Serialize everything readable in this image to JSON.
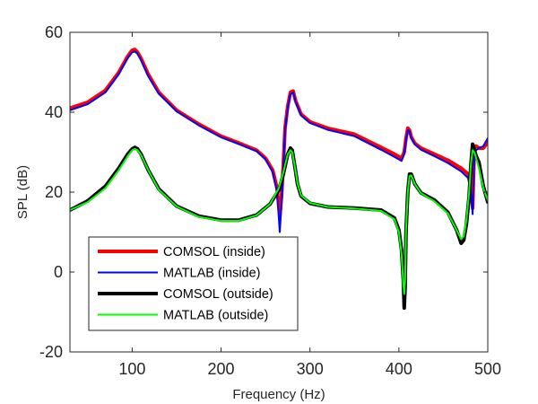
{
  "chart_data": {
    "type": "line",
    "xlabel": "Frequency (Hz)",
    "ylabel": "SPL (dB)",
    "xlim": [
      30,
      500
    ],
    "ylim": [
      -20,
      60
    ],
    "xticks": [
      100,
      200,
      300,
      400,
      500
    ],
    "yticks": [
      -20,
      0,
      20,
      40,
      60
    ],
    "grid": false,
    "legend_position": "bottom-left",
    "series": [
      {
        "name": "COMSOL (inside)",
        "color": "#ff0000",
        "line_width": "thick",
        "x": [
          30,
          50,
          70,
          85,
          95,
          100,
          103,
          106,
          110,
          118,
          130,
          150,
          175,
          200,
          220,
          240,
          250,
          258,
          263,
          266,
          268,
          270,
          272,
          275,
          278,
          281,
          284,
          290,
          300,
          320,
          350,
          380,
          395,
          403,
          406,
          408,
          410,
          412,
          414,
          418,
          425,
          440,
          455,
          470,
          478,
          481,
          483,
          485,
          487,
          490,
          495,
          500
        ],
        "values": [
          41,
          42.5,
          45.5,
          50,
          54,
          55.5,
          55.7,
          55,
          53.5,
          49.5,
          45,
          40.5,
          37,
          34,
          32.3,
          30.5,
          28.5,
          25.5,
          21,
          14,
          19,
          27,
          36,
          41.5,
          45,
          45.3,
          42.8,
          39.5,
          37.6,
          36,
          34.5,
          31.2,
          29.5,
          28.5,
          30,
          33.5,
          36,
          35.5,
          33.8,
          32.2,
          31,
          29.5,
          28,
          26,
          24.5,
          21,
          16,
          31.5,
          31.5,
          31,
          31,
          32.5
        ]
      },
      {
        "name": "MATLAB (inside)",
        "color": "#0000ff",
        "line_width": "thin",
        "x": [
          30,
          50,
          70,
          85,
          95,
          100,
          103,
          106,
          110,
          118,
          130,
          150,
          175,
          200,
          220,
          240,
          250,
          258,
          263,
          266,
          268,
          270,
          272,
          275,
          278,
          281,
          284,
          290,
          300,
          320,
          350,
          380,
          395,
          403,
          406,
          408,
          410,
          412,
          414,
          418,
          425,
          440,
          455,
          470,
          478,
          481,
          483,
          485,
          487,
          490,
          495,
          500
        ],
        "values": [
          40.5,
          42,
          45,
          49.5,
          53.5,
          55,
          55.2,
          54.6,
          53,
          49,
          44.6,
          40.2,
          36.7,
          33.7,
          32,
          30.2,
          28.2,
          25,
          20,
          10,
          17,
          26,
          35.5,
          41,
          44.5,
          45,
          42.5,
          39.2,
          37.3,
          35.6,
          34,
          30.6,
          28.8,
          27.8,
          29.5,
          33,
          35.5,
          35.2,
          33.5,
          31.9,
          30.6,
          29,
          27.3,
          25.2,
          23.5,
          20,
          14.5,
          30,
          30.5,
          31,
          31.5,
          33.5
        ]
      },
      {
        "name": "COMSOL (outside)",
        "color": "#000000",
        "line_width": "thick",
        "x": [
          30,
          50,
          70,
          85,
          95,
          100,
          103,
          106,
          110,
          118,
          130,
          150,
          175,
          200,
          220,
          240,
          255,
          265,
          270,
          275,
          278,
          280,
          283,
          286,
          290,
          300,
          320,
          350,
          380,
          395,
          400,
          403,
          405,
          406,
          407,
          408,
          410,
          412,
          414,
          418,
          425,
          440,
          455,
          465,
          470,
          473,
          476,
          479,
          481,
          483,
          485,
          487,
          490,
          495,
          500
        ],
        "values": [
          15.5,
          17.8,
          21.5,
          26,
          29.5,
          30.8,
          31.2,
          30.8,
          29.5,
          25.5,
          20.8,
          16.5,
          14,
          13,
          13,
          14.3,
          17,
          20.5,
          24.5,
          29.5,
          31,
          30.5,
          26.5,
          22,
          19,
          17.2,
          16.3,
          16,
          15.5,
          13.5,
          10.5,
          5.5,
          -2,
          -9,
          -4,
          10,
          20,
          24.5,
          24.5,
          22,
          19.8,
          18,
          15,
          10.5,
          7.2,
          8,
          12,
          19,
          27,
          32,
          30.5,
          29,
          27.5,
          21.5,
          17.5
        ]
      },
      {
        "name": "MATLAB (outside)",
        "color": "#00ff00",
        "line_width": "thin",
        "x": [
          30,
          50,
          70,
          85,
          95,
          100,
          103,
          106,
          110,
          118,
          130,
          150,
          175,
          200,
          220,
          240,
          255,
          265,
          270,
          275,
          278,
          280,
          283,
          286,
          290,
          300,
          320,
          350,
          380,
          395,
          400,
          403,
          405,
          406,
          407,
          408,
          410,
          412,
          414,
          418,
          425,
          440,
          455,
          465,
          470,
          473,
          476,
          479,
          481,
          483,
          485,
          487,
          490,
          495,
          500
        ],
        "values": [
          15.5,
          17.5,
          21,
          25.5,
          29,
          30.5,
          30.8,
          30.5,
          29.3,
          25.5,
          20.6,
          16.4,
          13.8,
          12.8,
          12.8,
          14.2,
          17,
          21,
          25,
          29.5,
          30.5,
          30,
          26.5,
          22.2,
          19.2,
          17.3,
          16.3,
          15.9,
          15.3,
          13.2,
          10,
          4.5,
          -3,
          -5.5,
          -2,
          10.5,
          20,
          24,
          24.2,
          22,
          19.7,
          17.7,
          14.7,
          10.5,
          8.2,
          9,
          13,
          20,
          27,
          30.5,
          30,
          28.5,
          26,
          21,
          18
        ]
      }
    ]
  }
}
